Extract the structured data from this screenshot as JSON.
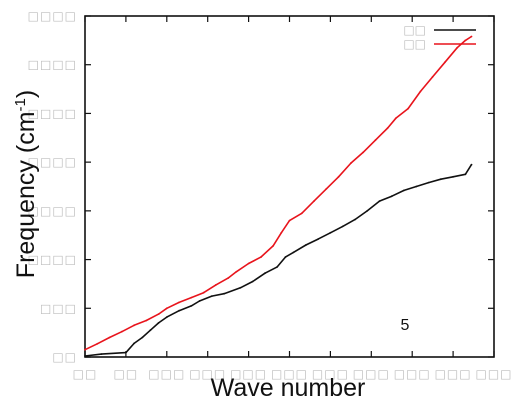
{
  "chart_data": {
    "type": "line",
    "xlabel": "Wave number",
    "ylabel_main": "Frequency (cm",
    "ylabel_sup": "-1",
    "ylabel_close": ")",
    "annotation": "5",
    "xlim": [
      0,
      10
    ],
    "ylim": [
      0,
      7
    ],
    "x_ticks": [
      0,
      1,
      2,
      3,
      4,
      5,
      6,
      7,
      8,
      9,
      10
    ],
    "y_ticks": [
      0,
      1,
      2,
      3,
      4,
      5,
      6,
      7
    ],
    "x_tick_labels": [
      "□□",
      "□□",
      "□□□",
      "□□□",
      "□□□",
      "□□□",
      "□□□",
      "□□□",
      "□□□",
      "□□□",
      "□□□"
    ],
    "y_tick_labels": [
      "□□",
      "□□□",
      "□□□□",
      "□□□□",
      "□□□□",
      "□□□□",
      "□□□□",
      "□□□□"
    ],
    "grid": false,
    "legend_position": "top-right",
    "series": [
      {
        "name": "□□",
        "color": "#111111",
        "points": [
          [
            0,
            0.02
          ],
          [
            0.4,
            0.06
          ],
          [
            1,
            0.09
          ],
          [
            1.2,
            0.28
          ],
          [
            1.4,
            0.4
          ],
          [
            1.6,
            0.55
          ],
          [
            1.8,
            0.7
          ],
          [
            2,
            0.82
          ],
          [
            2.3,
            0.95
          ],
          [
            2.6,
            1.05
          ],
          [
            2.8,
            1.15
          ],
          [
            3.1,
            1.25
          ],
          [
            3.4,
            1.3
          ],
          [
            3.8,
            1.42
          ],
          [
            4.1,
            1.55
          ],
          [
            4.4,
            1.72
          ],
          [
            4.7,
            1.85
          ],
          [
            4.9,
            2.05
          ],
          [
            5.1,
            2.15
          ],
          [
            5.4,
            2.3
          ],
          [
            5.7,
            2.42
          ],
          [
            6,
            2.55
          ],
          [
            6.3,
            2.68
          ],
          [
            6.6,
            2.82
          ],
          [
            6.9,
            3.0
          ],
          [
            7.2,
            3.2
          ],
          [
            7.5,
            3.3
          ],
          [
            7.8,
            3.42
          ],
          [
            8.1,
            3.5
          ],
          [
            8.4,
            3.58
          ],
          [
            8.7,
            3.65
          ],
          [
            9,
            3.7
          ],
          [
            9.3,
            3.75
          ],
          [
            9.45,
            3.95
          ]
        ]
      },
      {
        "name": "□□",
        "color": "#e8141c",
        "points": [
          [
            0,
            0.15
          ],
          [
            0.3,
            0.27
          ],
          [
            0.6,
            0.4
          ],
          [
            0.9,
            0.52
          ],
          [
            1.2,
            0.65
          ],
          [
            1.5,
            0.75
          ],
          [
            1.8,
            0.88
          ],
          [
            2,
            1.0
          ],
          [
            2.3,
            1.12
          ],
          [
            2.6,
            1.22
          ],
          [
            2.9,
            1.32
          ],
          [
            3.2,
            1.48
          ],
          [
            3.5,
            1.62
          ],
          [
            3.7,
            1.75
          ],
          [
            4,
            1.92
          ],
          [
            4.3,
            2.05
          ],
          [
            4.6,
            2.28
          ],
          [
            4.8,
            2.55
          ],
          [
            5,
            2.8
          ],
          [
            5.3,
            2.95
          ],
          [
            5.6,
            3.2
          ],
          [
            5.9,
            3.45
          ],
          [
            6.2,
            3.7
          ],
          [
            6.5,
            3.98
          ],
          [
            6.8,
            4.2
          ],
          [
            7.1,
            4.45
          ],
          [
            7.4,
            4.7
          ],
          [
            7.6,
            4.9
          ],
          [
            7.9,
            5.1
          ],
          [
            8.2,
            5.45
          ],
          [
            8.5,
            5.75
          ],
          [
            8.8,
            6.05
          ],
          [
            9.1,
            6.35
          ],
          [
            9.3,
            6.5
          ],
          [
            9.45,
            6.58
          ]
        ]
      }
    ]
  }
}
